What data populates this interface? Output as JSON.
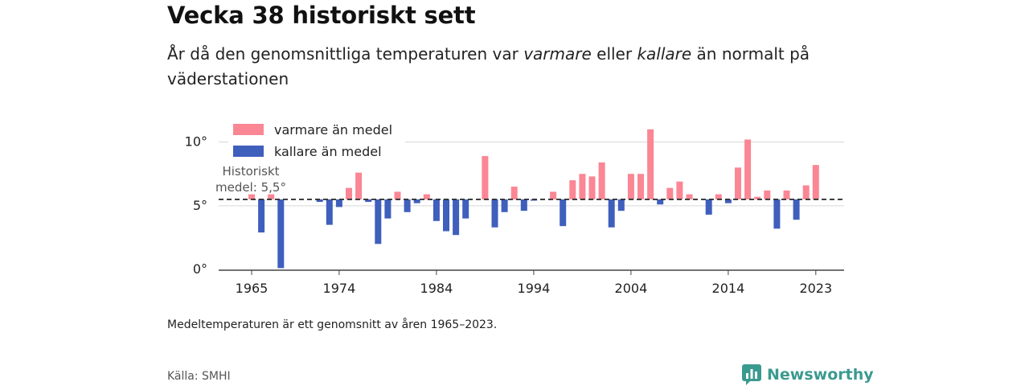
{
  "title": "Vecka 38 historiskt sett",
  "subtitle": {
    "part1": "År då den genomsnittliga temperaturen var ",
    "warm_word": "varmare",
    "part2": " eller ",
    "cold_word": "kallare",
    "part3": " än normalt på väderstationen"
  },
  "note": "Medeltemperaturen är ett genomsnitt av åren 1965–2023.",
  "source": "Källa: SMHI",
  "brand": "Newsworthy",
  "colors": {
    "warm": "#fb8694",
    "cold": "#3f5fbd",
    "reference": "#333333",
    "grid": "#d6d6d6",
    "brand": "#3b9a90"
  },
  "chart_data": {
    "type": "bar",
    "baseline": 5.5,
    "baseline_label_line1": "Historiskt",
    "baseline_label_line2": "medel: 5,5°",
    "legend": {
      "warm": "varmare än medel",
      "cold": "kallare än medel",
      "placement": "top-left"
    },
    "ylim": [
      0,
      12
    ],
    "yticks": [
      0,
      5,
      10
    ],
    "ytick_labels": [
      "0°",
      "5°",
      "10°"
    ],
    "xticks": [
      1965,
      1974,
      1984,
      1994,
      2004,
      2014,
      2023
    ],
    "xtick_labels": [
      "1965",
      "1974",
      "1984",
      "1994",
      "2004",
      "2014",
      "2023"
    ],
    "years": [
      1965,
      1966,
      1967,
      1968,
      1969,
      1970,
      1971,
      1972,
      1973,
      1974,
      1975,
      1976,
      1977,
      1978,
      1979,
      1980,
      1981,
      1982,
      1983,
      1984,
      1985,
      1986,
      1987,
      1988,
      1989,
      1990,
      1991,
      1992,
      1993,
      1994,
      1995,
      1996,
      1997,
      1998,
      1999,
      2000,
      2001,
      2002,
      2003,
      2004,
      2005,
      2006,
      2007,
      2008,
      2009,
      2010,
      2011,
      2012,
      2013,
      2014,
      2015,
      2016,
      2017,
      2018,
      2019,
      2020,
      2021,
      2022,
      2023
    ],
    "values": [
      5.9,
      2.9,
      5.9,
      0.1,
      null,
      null,
      null,
      5.3,
      3.5,
      4.9,
      6.4,
      7.6,
      5.3,
      2.0,
      4.0,
      6.1,
      4.5,
      5.2,
      5.9,
      3.8,
      3.0,
      2.7,
      4.0,
      null,
      8.9,
      3.3,
      4.5,
      6.5,
      4.6,
      5.4,
      null,
      6.1,
      3.4,
      7.0,
      7.5,
      7.3,
      8.4,
      3.3,
      4.6,
      7.5,
      7.5,
      11.0,
      5.1,
      6.4,
      6.9,
      5.9,
      null,
      4.3,
      5.9,
      5.2,
      8.0,
      10.2,
      5.7,
      6.2,
      3.2,
      6.2,
      3.9,
      6.6,
      8.2
    ]
  }
}
